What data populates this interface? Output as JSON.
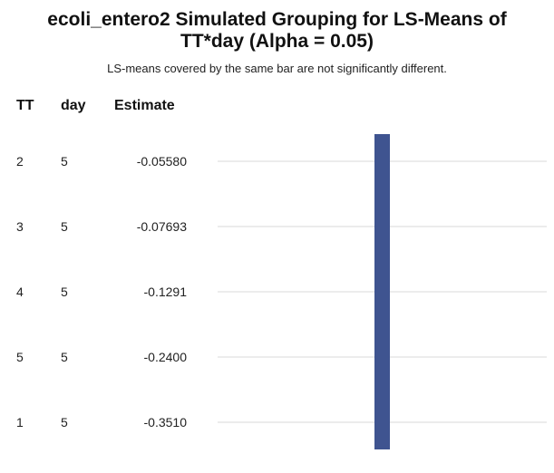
{
  "chart_data": {
    "type": "table",
    "title_line1": "ecoli_entero2 Simulated Grouping for LS-Means of",
    "title_line2": "TT*day (Alpha = 0.05)",
    "subtitle": "LS-means covered by the same bar are not significantly different.",
    "columns": [
      "TT",
      "day",
      "Estimate"
    ],
    "rows": [
      {
        "TT": "2",
        "day": "5",
        "Estimate": "-0.05580"
      },
      {
        "TT": "3",
        "day": "5",
        "Estimate": "-0.07693"
      },
      {
        "TT": "4",
        "day": "5",
        "Estimate": "-0.1291"
      },
      {
        "TT": "5",
        "day": "5",
        "Estimate": "-0.2400"
      },
      {
        "TT": "1",
        "day": "5",
        "Estimate": "-0.3510"
      }
    ],
    "groups": [
      {
        "start_row": 0,
        "end_row": 4
      }
    ],
    "colors": {
      "bar": "#3f5490",
      "row_line": "#d8d8d8"
    }
  }
}
